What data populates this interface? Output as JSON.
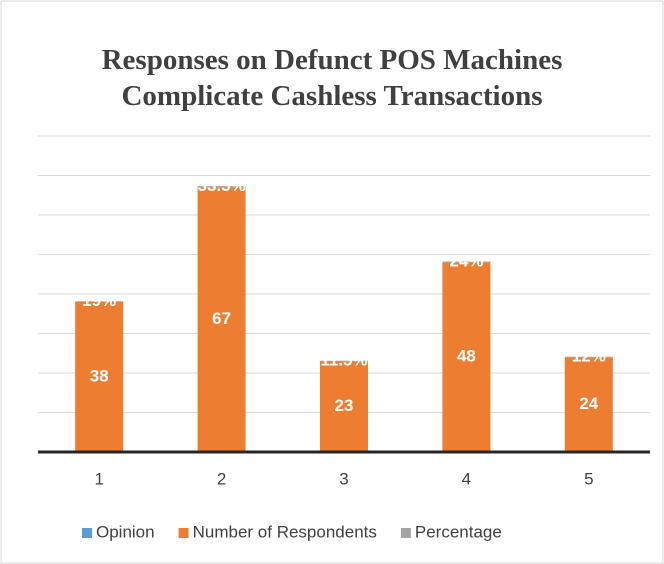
{
  "chart_data": {
    "type": "stacked_bar",
    "title": "Responses on Defunct POS Machines Complicate Cashless Transactions",
    "categories": [
      "1",
      "2",
      "3",
      "4",
      "5"
    ],
    "series": [
      {
        "name": "Opinion",
        "color": "#5b9bd5",
        "values": [
          0,
          0,
          0,
          0,
          0
        ]
      },
      {
        "name": "Number of Respondents",
        "color": "#ed7d31",
        "values": [
          38,
          67,
          23,
          48,
          24
        ]
      },
      {
        "name": "Percentage",
        "color": "#a5a5a5",
        "values": [
          0.19,
          0.335,
          0.115,
          0.24,
          0.12
        ],
        "value_labels": [
          "19%",
          "33.5%",
          "11.5%",
          "24%",
          "12%"
        ]
      }
    ],
    "ylim": [
      0,
      80
    ],
    "yticks": [
      0,
      10,
      20,
      30,
      40,
      50,
      60,
      70,
      80
    ],
    "grid": true,
    "legend": "bottom"
  }
}
